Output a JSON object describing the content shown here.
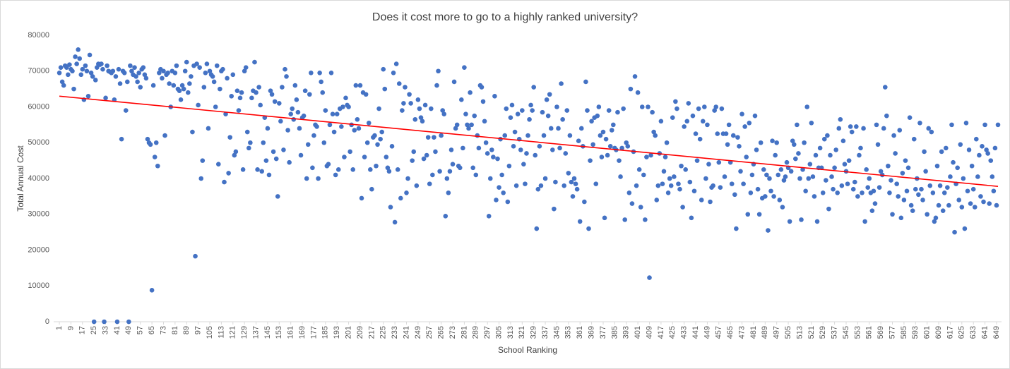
{
  "chart_data": {
    "type": "scatter",
    "title": "Does it cost more to go to a highly ranked university?",
    "x_label": "School Ranking",
    "y_label": "Total Annual Cost",
    "color": "#4472c4",
    "xlim": [
      0,
      650
    ],
    "ylim": [
      0,
      80000
    ],
    "yticks": [
      0,
      10000,
      20000,
      30000,
      40000,
      50000,
      60000,
      70000,
      80000
    ],
    "xticks": [
      1,
      9,
      17,
      25,
      33,
      41,
      49,
      57,
      65,
      73,
      81,
      89,
      97,
      105,
      113,
      121,
      129,
      137,
      145,
      153,
      161,
      169,
      177,
      185,
      193,
      201,
      209,
      217,
      225,
      233,
      241,
      249,
      257,
      265,
      273,
      281,
      289,
      297,
      305,
      313,
      321,
      329,
      337,
      345,
      353,
      361,
      369,
      377,
      385,
      393,
      401,
      409,
      417,
      425,
      433,
      441,
      449,
      457,
      465,
      473,
      481,
      489,
      497,
      505,
      513,
      521,
      529,
      537,
      545,
      553,
      561,
      569,
      577,
      585,
      593,
      601,
      609,
      617,
      625,
      633,
      641,
      649
    ],
    "x": [
      1,
      2,
      3,
      4,
      5,
      6,
      7,
      8,
      9,
      10,
      11,
      12,
      13,
      14,
      15,
      16,
      17,
      18,
      19,
      20,
      21,
      22,
      23,
      24,
      25,
      26,
      27,
      28,
      29,
      30,
      31,
      32,
      33,
      34,
      35,
      36,
      37,
      38,
      39,
      40,
      41,
      42,
      43,
      44,
      45,
      46,
      47,
      48,
      49,
      50,
      51,
      52,
      53,
      54,
      55,
      56,
      57,
      58,
      59,
      60,
      61,
      62,
      63,
      64,
      65,
      66,
      67,
      68,
      69,
      70,
      71,
      72,
      73,
      74,
      75,
      76,
      77,
      78,
      79,
      80,
      81,
      82,
      83,
      84,
      85,
      86,
      87,
      88,
      89,
      90,
      91,
      92,
      93,
      94,
      95,
      96,
      97,
      98,
      99,
      100,
      101,
      102,
      103,
      104,
      105,
      106,
      107,
      108,
      109,
      110,
      111,
      112,
      113,
      114,
      115,
      116,
      117,
      118,
      119,
      120,
      121,
      122,
      123,
      124,
      125,
      126,
      127,
      128,
      129,
      130,
      131,
      132,
      133,
      134,
      135,
      136,
      137,
      138,
      139,
      140,
      141,
      142,
      143,
      144,
      145,
      146,
      147,
      148,
      149,
      150,
      151,
      152,
      153,
      154,
      155,
      156,
      157,
      158,
      159,
      160,
      161,
      162,
      163,
      164,
      165,
      166,
      167,
      168,
      169,
      170,
      171,
      172,
      173,
      174,
      175,
      176,
      177,
      178,
      179,
      180,
      181,
      182,
      183,
      184,
      185,
      186,
      187,
      188,
      189,
      190,
      191,
      192,
      193,
      194,
      195,
      196,
      197,
      198,
      199,
      200,
      201,
      202,
      203,
      204,
      205,
      206,
      207,
      208,
      209,
      210,
      211,
      212,
      213,
      214,
      215,
      216,
      217,
      218,
      219,
      220,
      221,
      222,
      223,
      224,
      225,
      226,
      227,
      228,
      229,
      230,
      231,
      232,
      233,
      234,
      235,
      236,
      237,
      238,
      239,
      240,
      241,
      242,
      243,
      244,
      245,
      246,
      247,
      248,
      249,
      250,
      251,
      252,
      253,
      254,
      255,
      256,
      257,
      258,
      259,
      260,
      261,
      262,
      263,
      264,
      265,
      266,
      267,
      268,
      269,
      270,
      271,
      272,
      273,
      274,
      275,
      276,
      277,
      278,
      279,
      280,
      281,
      282,
      283,
      284,
      285,
      286,
      287,
      288,
      289,
      290,
      291,
      292,
      293,
      294,
      295,
      296,
      297,
      298,
      299,
      300,
      301,
      302,
      303,
      304,
      305,
      306,
      307,
      308,
      309,
      310,
      311,
      312,
      313,
      314,
      315,
      316,
      317,
      318,
      319,
      320,
      321,
      322,
      323,
      324,
      325,
      326,
      327,
      328,
      329,
      330,
      331,
      332,
      333,
      334,
      335,
      336,
      337,
      338,
      339,
      340,
      341,
      342,
      343,
      344,
      345,
      346,
      347,
      348,
      349,
      350,
      351,
      352,
      353,
      354,
      355,
      356,
      357,
      358,
      359,
      360,
      361,
      362,
      363,
      364,
      365,
      366,
      367,
      368,
      369,
      370,
      371,
      372,
      373,
      374,
      375,
      376,
      377,
      378,
      379,
      380,
      381,
      382,
      383,
      384,
      385,
      386,
      387,
      388,
      389,
      390,
      391,
      392,
      393,
      394,
      395,
      396,
      397,
      398,
      399,
      400,
      401,
      402,
      403,
      404,
      405,
      406,
      407,
      408,
      409,
      410,
      411,
      412,
      413,
      414,
      415,
      416,
      417,
      418,
      419,
      420,
      421,
      422,
      423,
      424,
      425,
      426,
      427,
      428,
      429,
      430,
      431,
      432,
      433,
      434,
      435,
      436,
      437,
      438,
      439,
      440,
      441,
      442,
      443,
      444,
      445,
      446,
      447,
      448,
      449,
      450,
      451,
      452,
      453,
      454,
      455,
      456,
      457,
      458,
      459,
      460,
      461,
      462,
      463,
      464,
      465,
      466,
      467,
      468,
      469,
      470,
      471,
      472,
      473,
      474,
      475,
      476,
      477,
      478,
      479,
      480,
      481,
      482,
      483,
      484,
      485,
      486,
      487,
      488,
      489,
      490,
      491,
      492,
      493,
      494,
      495,
      496,
      497,
      498,
      499,
      500,
      501,
      502,
      503,
      504,
      505,
      506,
      507,
      508,
      509,
      510,
      511,
      512,
      513,
      514,
      515,
      516,
      517,
      518,
      519,
      520,
      521,
      522,
      523,
      524,
      525,
      526,
      527,
      528,
      529,
      530,
      531,
      532,
      533,
      534,
      535,
      536,
      537,
      538,
      539,
      540,
      541,
      542,
      543,
      544,
      545,
      546,
      547,
      548,
      549,
      550,
      551,
      552,
      553,
      554,
      555,
      556,
      557,
      558,
      559,
      560,
      561,
      562,
      563,
      564,
      565,
      566,
      567,
      568,
      569,
      570,
      571,
      572,
      573,
      574,
      575,
      576,
      577,
      578,
      579,
      580,
      581,
      582,
      583,
      584,
      585,
      586,
      587,
      588,
      589,
      590,
      591,
      592,
      593,
      594,
      595,
      596,
      597,
      598,
      599,
      600,
      601,
      602,
      603,
      604,
      605,
      606,
      607,
      608,
      609,
      610,
      611,
      612,
      613,
      614,
      615,
      616,
      617,
      618,
      619,
      620,
      621,
      622,
      623,
      624,
      625,
      626,
      627,
      628,
      629,
      630,
      631,
      632,
      633,
      634,
      635,
      636,
      637,
      638,
      639,
      640,
      641,
      642,
      643,
      644,
      645,
      646,
      647,
      648,
      649,
      650
    ],
    "values": [
      69500,
      71000,
      67000,
      66000,
      71500,
      71000,
      69000,
      71800,
      70500,
      70000,
      65000,
      74000,
      72000,
      76000,
      73500,
      69000,
      70500,
      62000,
      71500,
      70000,
      63000,
      74500,
      69500,
      68500,
      0,
      67500,
      71000,
      72000,
      71800,
      72000,
      70500,
      0,
      62500,
      71500,
      70000,
      69800,
      69500,
      70000,
      62000,
      68500,
      0,
      70500,
      66500,
      51000,
      70000,
      69500,
      59000,
      67000,
      0,
      71500,
      70000,
      69000,
      71000,
      68500,
      67000,
      69500,
      65500,
      70500,
      71000,
      69000,
      68000,
      51000,
      50000,
      49500,
      8800,
      66000,
      46000,
      50000,
      43500,
      69500,
      70500,
      68000,
      70000,
      52000,
      69000,
      69500,
      66500,
      60000,
      70000,
      66000,
      69500,
      71500,
      65000,
      64500,
      62000,
      66000,
      65000,
      70000,
      72500,
      64000,
      66500,
      68500,
      53000,
      71500,
      18300,
      72000,
      60500,
      71000,
      40000,
      45000,
      65500,
      69500,
      72000,
      54000,
      70000,
      69000,
      68500,
      67000,
      60000,
      71500,
      44000,
      65000,
      70000,
      70500,
      39000,
      58000,
      68000,
      41500,
      51500,
      63000,
      69000,
      46500,
      47500,
      64500,
      59000,
      62500,
      64000,
      42500,
      70000,
      71000,
      53000,
      48500,
      50000,
      62500,
      64500,
      72500,
      64000,
      42500,
      65500,
      60500,
      42000,
      50000,
      57000,
      45000,
      54000,
      41000,
      64500,
      63500,
      47500,
      61500,
      45500,
      35000,
      61000,
      56000,
      65500,
      48000,
      70500,
      68500,
      53500,
      44500,
      58000,
      59500,
      56500,
      66000,
      62000,
      58500,
      54000,
      46500,
      57000,
      57500,
      64500,
      40000,
      49500,
      63500,
      69500,
      43000,
      52000,
      55000,
      54500,
      40000,
      69500,
      67000,
      64000,
      50000,
      59000,
      43500,
      44000,
      55000,
      69500,
      58000,
      53000,
      41000,
      58000,
      42500,
      59500,
      54500,
      60000,
      46000,
      62500,
      60500,
      60000,
      47500,
      55000,
      42500,
      53500,
      66000,
      56500,
      54000,
      66000,
      34500,
      64000,
      46000,
      63500,
      50000,
      55500,
      42500,
      37000,
      51500,
      52000,
      43500,
      49500,
      59500,
      51000,
      53000,
      70500,
      65000,
      46000,
      43000,
      42000,
      32000,
      49000,
      69500,
      27800,
      72000,
      42500,
      66500,
      34500,
      59000,
      61000,
      65500,
      36000,
      40000,
      63500,
      61000,
      45000,
      47500,
      56500,
      38000,
      62000,
      59500,
      57000,
      56000,
      45500,
      60500,
      46500,
      51500,
      38500,
      59500,
      41000,
      51500,
      47500,
      66000,
      70000,
      42000,
      52000,
      59000,
      58000,
      29500,
      40000,
      36000,
      42000,
      48000,
      44000,
      67000,
      54000,
      55000,
      43500,
      43000,
      62000,
      48500,
      71000,
      58000,
      55000,
      54000,
      64000,
      55000,
      43000,
      57500,
      41000,
      52000,
      48500,
      66000,
      65500,
      61500,
      56000,
      50000,
      47000,
      29500,
      40000,
      48000,
      46000,
      63000,
      34000,
      45500,
      37500,
      51000,
      41000,
      36000,
      52000,
      59500,
      33500,
      43500,
      57000,
      60500,
      49000,
      53000,
      38000,
      58000,
      51000,
      48000,
      59000,
      44000,
      38500,
      47000,
      52000,
      56500,
      60500,
      59000,
      65500,
      46500,
      26000,
      37000,
      49000,
      38000,
      58500,
      52000,
      40000,
      62000,
      57500,
      63500,
      54000,
      48000,
      31500,
      39000,
      60000,
      54000,
      48500,
      66500,
      56500,
      38000,
      47000,
      59000,
      41500,
      52000,
      39000,
      35000,
      40000,
      38500,
      37000,
      50500,
      28000,
      54000,
      49000,
      33500,
      67000,
      59000,
      26000,
      45000,
      56000,
      49500,
      57000,
      38500,
      57500,
      60000,
      52000,
      46000,
      53000,
      29000,
      51000,
      46500,
      59000,
      49000,
      53500,
      55000,
      48500,
      48000,
      58500,
      45000,
      40500,
      48500,
      59500,
      28500,
      50000,
      49000,
      36000,
      65000,
      33000,
      47500,
      68500,
      38000,
      64000,
      42500,
      32000,
      60000,
      41000,
      28500,
      46000,
      60000,
      12300,
      46500,
      58500,
      53000,
      52000,
      34000,
      38000,
      47000,
      56000,
      38500,
      42000,
      46000,
      50000,
      36000,
      40000,
      38000,
      57000,
      40500,
      61500,
      59500,
      38500,
      37000,
      43500,
      32000,
      54500,
      42500,
      56000,
      61000,
      39000,
      29000,
      57500,
      36500,
      52500,
      45000,
      59500,
      51000,
      34000,
      56000,
      60000,
      40000,
      55000,
      44000,
      33500,
      37500,
      38000,
      59000,
      60000,
      52500,
      44500,
      37500,
      59500,
      52500,
      40500,
      52500,
      49500,
      55000,
      44500,
      38500,
      52000,
      35500,
      26000,
      51500,
      49000,
      42000,
      58000,
      38500,
      54500,
      46000,
      30000,
      55500,
      36000,
      41000,
      44000,
      57500,
      48000,
      37000,
      30000,
      50000,
      34500,
      42500,
      35000,
      41000,
      25500,
      40000,
      36500,
      50500,
      35000,
      46500,
      50000,
      41000,
      34000,
      42500,
      32000,
      39500,
      40500,
      44500,
      43000,
      28000,
      42000,
      50500,
      49500,
      45500,
      55000,
      47000,
      40000,
      28500,
      42500,
      50000,
      36500,
      60000,
      40000,
      44000,
      55500,
      40500,
      35000,
      46500,
      28000,
      43000,
      48500,
      43000,
      36000,
      51000,
      39500,
      52000,
      31500,
      46500,
      40500,
      37000,
      43000,
      48000,
      36000,
      54000,
      56500,
      38000,
      50500,
      44000,
      42000,
      38500,
      45000,
      54500,
      53000,
      37000,
      39000,
      54500,
      35000,
      46500,
      48500,
      36000,
      54000,
      28000,
      42500,
      37500,
      40000,
      36000,
      31000,
      36500,
      33000,
      55000,
      49500,
      37500,
      42000,
      41000,
      54000,
      65500,
      57500,
      43500,
      36000,
      39500,
      30000,
      52000,
      47000,
      38500,
      35000,
      53500,
      29000,
      41500,
      34000,
      45000,
      36500,
      43000,
      57000,
      32500,
      31000,
      51000,
      37000,
      40000,
      35500,
      55500,
      37000,
      34000,
      47500,
      42000,
      30000,
      54000,
      38000,
      53000,
      36000,
      28000,
      29000,
      43500,
      32500,
      38000,
      47500,
      31000,
      36000,
      48500,
      37500,
      32500,
      40500,
      55000,
      44500,
      25000,
      38500,
      43000,
      34000,
      49500,
      32000,
      40000,
      26000,
      55500,
      36500,
      48000,
      33000,
      43500,
      37000,
      32000,
      51000,
      40500,
      46500,
      35000,
      49000,
      33500,
      55000,
      48000,
      47000,
      33000,
      45000,
      40500,
      36500,
      48500,
      32500,
      55000
    ],
    "trendline": {
      "x": [
        1,
        650
      ],
      "values": [
        63000,
        37800
      ],
      "color": "#ff0000"
    }
  }
}
